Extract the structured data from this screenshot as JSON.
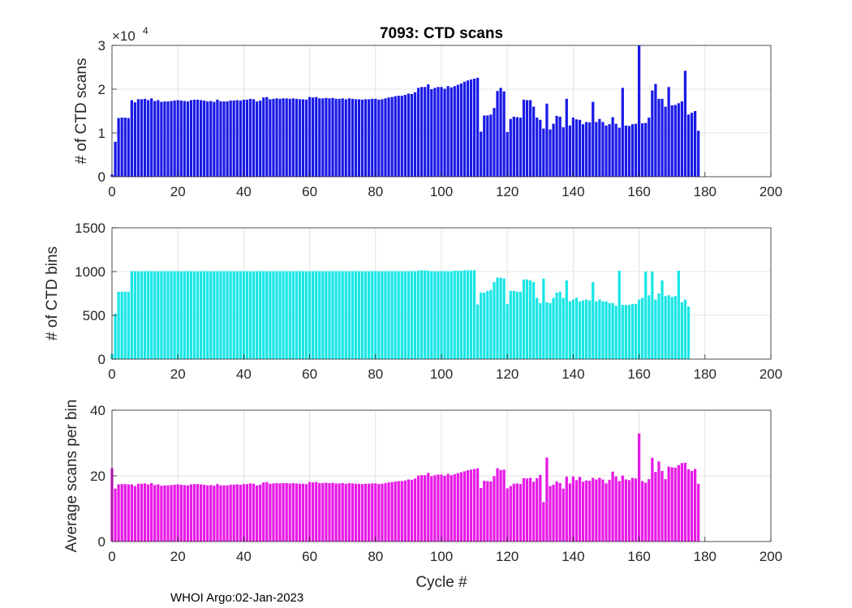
{
  "figure": {
    "title": "7093: CTD scans",
    "xlabel": "Cycle #",
    "footer": "WHOI Argo:02-Jan-2023"
  },
  "chart_data": [
    {
      "type": "bar",
      "name": "ctd-scans",
      "title": "7093: CTD scans",
      "ylabel": "# of CTD scans",
      "xlim": [
        0,
        200
      ],
      "ylim": [
        0,
        3
      ],
      "xticks": [
        "0",
        "20",
        "40",
        "60",
        "80",
        "100",
        "120",
        "140",
        "160",
        "180",
        "200"
      ],
      "yticks": [
        "0",
        "1",
        "2",
        "3"
      ],
      "exponent_base": "×10",
      "exponent_power": "4",
      "grid": true,
      "color": "#1a1ae6",
      "x_start": 0,
      "values": [
        0.05,
        0.8,
        1.34,
        1.35,
        1.35,
        1.34,
        1.75,
        1.7,
        1.77,
        1.77,
        1.78,
        1.75,
        1.79,
        1.73,
        1.75,
        1.71,
        1.72,
        1.72,
        1.73,
        1.74,
        1.75,
        1.74,
        1.73,
        1.72,
        1.75,
        1.76,
        1.76,
        1.75,
        1.74,
        1.72,
        1.73,
        1.71,
        1.76,
        1.72,
        1.72,
        1.72,
        1.74,
        1.74,
        1.75,
        1.74,
        1.76,
        1.76,
        1.78,
        1.77,
        1.72,
        1.74,
        1.81,
        1.82,
        1.77,
        1.78,
        1.79,
        1.78,
        1.79,
        1.79,
        1.78,
        1.79,
        1.78,
        1.77,
        1.77,
        1.76,
        1.82,
        1.81,
        1.82,
        1.79,
        1.79,
        1.8,
        1.79,
        1.8,
        1.78,
        1.78,
        1.79,
        1.77,
        1.79,
        1.78,
        1.77,
        1.77,
        1.76,
        1.77,
        1.77,
        1.78,
        1.78,
        1.76,
        1.77,
        1.79,
        1.81,
        1.82,
        1.84,
        1.85,
        1.85,
        1.87,
        1.9,
        1.89,
        1.93,
        2.03,
        2.05,
        2.05,
        2.11,
        2.0,
        2.03,
        2.05,
        2.05,
        2.01,
        2.07,
        2.04,
        2.07,
        2.1,
        2.13,
        2.17,
        2.2,
        2.22,
        2.24,
        2.26,
        1.03,
        1.4,
        1.4,
        1.42,
        1.57,
        1.96,
        2.03,
        1.95,
        1.02,
        1.32,
        1.37,
        1.36,
        1.35,
        1.76,
        1.75,
        1.75,
        1.6,
        1.35,
        1.3,
        1.1,
        1.67,
        1.08,
        1.21,
        1.39,
        1.37,
        1.13,
        1.78,
        1.17,
        1.35,
        1.31,
        1.3,
        1.2,
        1.25,
        1.24,
        1.71,
        1.25,
        1.32,
        1.25,
        1.17,
        1.2,
        1.36,
        1.21,
        1.12,
        2.03,
        1.17,
        1.16,
        1.2,
        1.21,
        3.0,
        1.22,
        1.23,
        1.35,
        1.97,
        2.12,
        1.78,
        1.78,
        1.6,
        2.05,
        1.63,
        1.64,
        1.68,
        1.72,
        2.42,
        1.42,
        1.46,
        1.5,
        1.05
      ]
    },
    {
      "type": "bar",
      "name": "ctd-bins",
      "ylabel": "# of CTD bins",
      "xlim": [
        0,
        200
      ],
      "ylim": [
        0,
        1500
      ],
      "xticks": [
        "0",
        "20",
        "40",
        "60",
        "80",
        "100",
        "120",
        "140",
        "160",
        "180",
        "200"
      ],
      "yticks": [
        "0",
        "500",
        "1000",
        "1500"
      ],
      "grid": true,
      "color": "#1ae6e6",
      "x_start": 0,
      "values": [
        60,
        520,
        770,
        770,
        770,
        770,
        1005,
        1005,
        1005,
        1005,
        1005,
        1005,
        1005,
        1005,
        1005,
        1005,
        1005,
        1005,
        1005,
        1005,
        1005,
        1005,
        1005,
        1005,
        1005,
        1005,
        1005,
        1005,
        1005,
        1005,
        1005,
        1005,
        1005,
        1005,
        1005,
        1005,
        1005,
        1005,
        1005,
        1005,
        1005,
        1005,
        1005,
        1005,
        1005,
        1005,
        1005,
        1005,
        1005,
        1005,
        1005,
        1005,
        1005,
        1005,
        1005,
        1005,
        1005,
        1005,
        1005,
        1005,
        1005,
        1005,
        1005,
        1005,
        1005,
        1005,
        1005,
        1005,
        1005,
        1005,
        1005,
        1005,
        1005,
        1005,
        1005,
        1005,
        1005,
        1005,
        1005,
        1005,
        1005,
        1005,
        1005,
        1005,
        1005,
        1005,
        1005,
        1005,
        1005,
        1005,
        1005,
        1005,
        1005,
        1010,
        1015,
        1015,
        1010,
        1005,
        1005,
        1005,
        1005,
        1005,
        1005,
        1005,
        1010,
        1010,
        1010,
        1015,
        1015,
        1015,
        1015,
        625,
        760,
        760,
        780,
        790,
        880,
        930,
        930,
        920,
        630,
        780,
        780,
        770,
        770,
        910,
        910,
        900,
        880,
        700,
        640,
        920,
        650,
        640,
        700,
        760,
        770,
        700,
        900,
        660,
        680,
        700,
        660,
        670,
        680,
        670,
        880,
        660,
        680,
        660,
        660,
        640,
        640,
        610,
        1010,
        620,
        620,
        620,
        630,
        630,
        680,
        700,
        1000,
        730,
        1000,
        680,
        750,
        900,
        720,
        730,
        710,
        720,
        1010,
        650,
        680,
        600
      ]
    },
    {
      "type": "bar",
      "name": "avg-scans-per-bin",
      "ylabel": "Average scans per bin",
      "xlabel": "Cycle #",
      "xlim": [
        0,
        200
      ],
      "ylim": [
        0,
        40
      ],
      "xticks": [
        "0",
        "20",
        "40",
        "60",
        "80",
        "100",
        "120",
        "140",
        "160",
        "180",
        "200"
      ],
      "yticks": [
        "0",
        "20",
        "40"
      ],
      "grid": true,
      "color": "#e61ae6",
      "x_start": 0,
      "values": [
        22.3,
        16.1,
        17.4,
        17.5,
        17.5,
        17.4,
        17.4,
        16.9,
        17.6,
        17.6,
        17.7,
        17.4,
        17.8,
        17.2,
        17.4,
        17.0,
        17.1,
        17.1,
        17.2,
        17.3,
        17.4,
        17.3,
        17.2,
        17.1,
        17.4,
        17.5,
        17.5,
        17.4,
        17.3,
        17.1,
        17.2,
        17.0,
        17.5,
        17.1,
        17.1,
        17.1,
        17.3,
        17.3,
        17.4,
        17.3,
        17.5,
        17.5,
        17.7,
        17.6,
        17.1,
        17.3,
        18.0,
        18.1,
        17.6,
        17.7,
        17.8,
        17.7,
        17.8,
        17.8,
        17.7,
        17.8,
        17.7,
        17.6,
        17.6,
        17.5,
        18.1,
        18.0,
        18.1,
        17.8,
        17.8,
        17.9,
        17.8,
        17.9,
        17.7,
        17.7,
        17.8,
        17.6,
        17.8,
        17.7,
        17.6,
        17.6,
        17.5,
        17.6,
        17.6,
        17.7,
        17.7,
        17.5,
        17.6,
        17.8,
        18.0,
        18.1,
        18.3,
        18.4,
        18.4,
        18.6,
        18.9,
        18.8,
        19.2,
        20.1,
        20.2,
        20.2,
        20.9,
        19.9,
        20.2,
        20.4,
        20.4,
        20.0,
        20.6,
        20.2,
        20.5,
        20.8,
        21.1,
        21.4,
        21.7,
        21.9,
        22.1,
        22.3,
        16.3,
        18.5,
        18.4,
        18.3,
        19.9,
        22.3,
        21.8,
        21.9,
        16.2,
        16.9,
        17.6,
        17.7,
        17.5,
        19.3,
        19.2,
        19.4,
        18.2,
        19.3,
        20.3,
        12.0,
        25.6,
        16.9,
        17.3,
        18.3,
        17.8,
        16.1,
        19.8,
        17.7,
        19.8,
        18.7,
        19.7,
        18.2,
        18.6,
        18.5,
        19.4,
        18.9,
        19.4,
        18.9,
        17.7,
        18.8,
        21.3,
        19.8,
        18.4,
        20.1,
        18.9,
        18.7,
        19.4,
        19.2,
        32.9,
        18.4,
        17.9,
        19.0,
        25.5,
        21.2,
        24.4,
        21.5,
        19.0,
        22.8,
        22.6,
        22.5,
        23.3,
        23.9,
        24.0,
        22.0,
        21.5,
        22.1,
        17.6
      ]
    }
  ]
}
